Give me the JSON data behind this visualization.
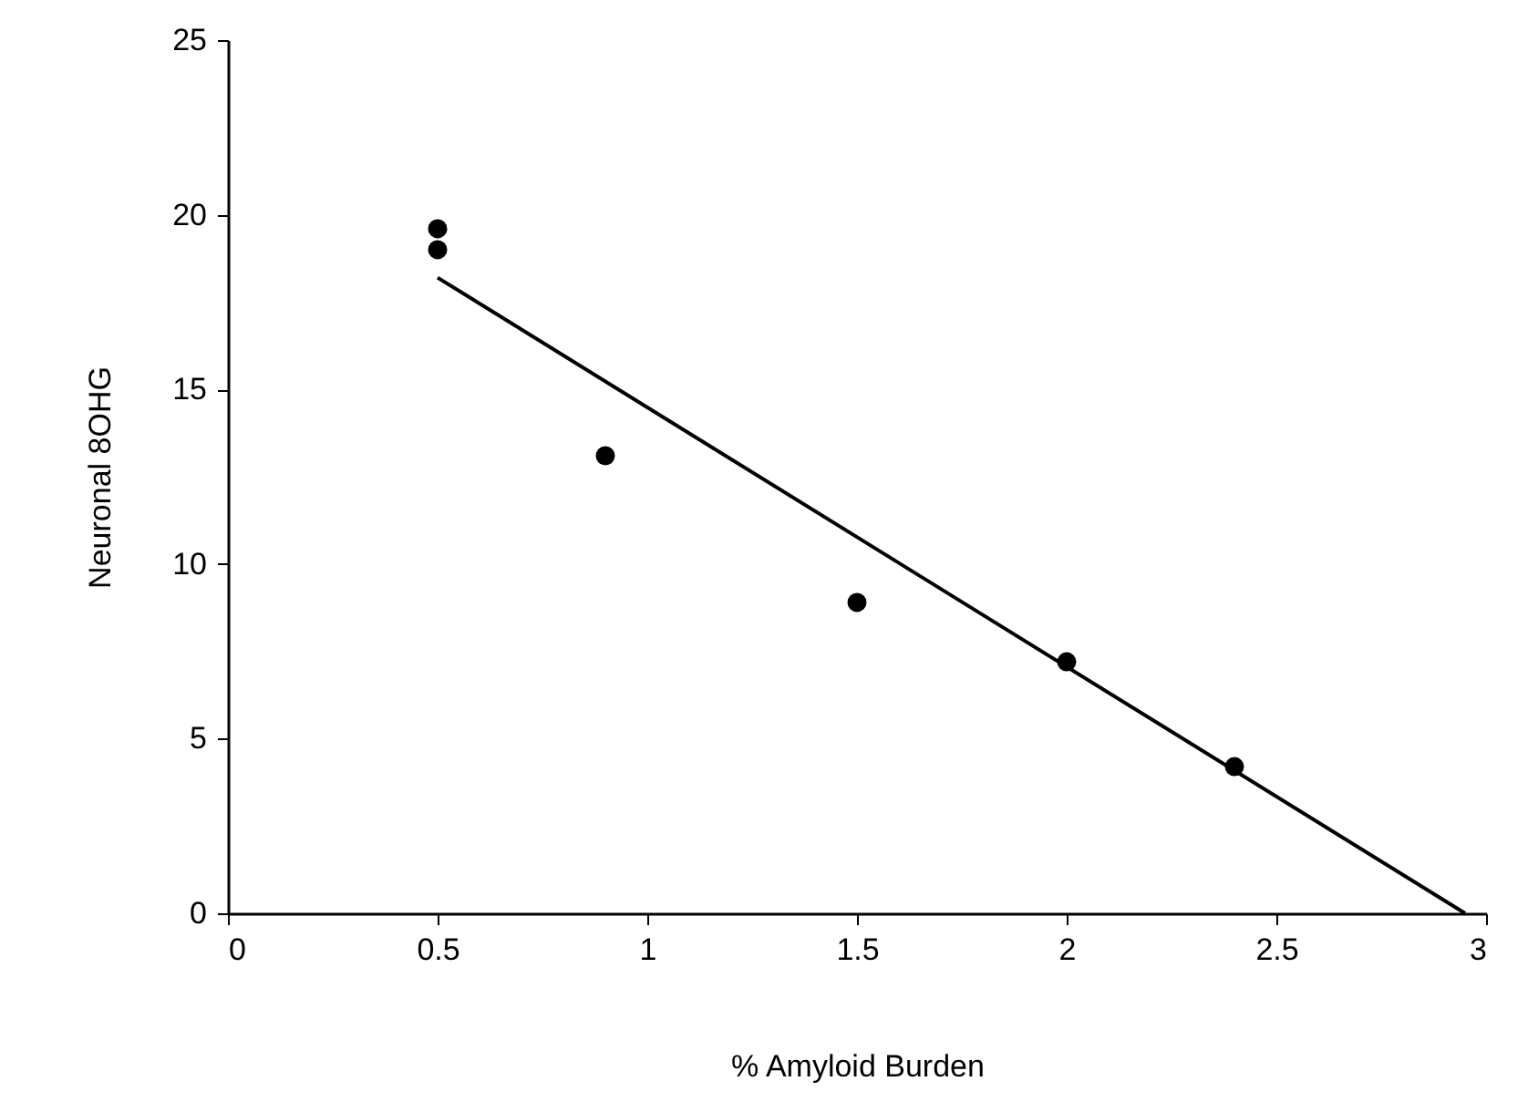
{
  "chart_data": {
    "type": "scatter",
    "xlabel": "% Amyloid Burden",
    "ylabel": "Neuronal 8OHG",
    "xlim": [
      0,
      3
    ],
    "ylim": [
      0,
      25
    ],
    "xticks": [
      0,
      0.5,
      1,
      1.5,
      2,
      2.5,
      3
    ],
    "yticks": [
      0,
      5,
      10,
      15,
      20,
      25
    ],
    "grid": false,
    "marker": "circle",
    "series": [
      {
        "color": "#000000",
        "x": [
          0.5,
          0.5,
          0.9,
          1.5,
          2.0,
          2.4
        ],
        "values": [
          19.6,
          19.0,
          13.1,
          8.9,
          7.2,
          4.2
        ]
      },
      {
        "type": "line",
        "color": "#000000",
        "line_style": "solid",
        "marker": "none",
        "x": [
          0.5,
          2.95
        ],
        "values": [
          18.2,
          0
        ]
      }
    ]
  }
}
